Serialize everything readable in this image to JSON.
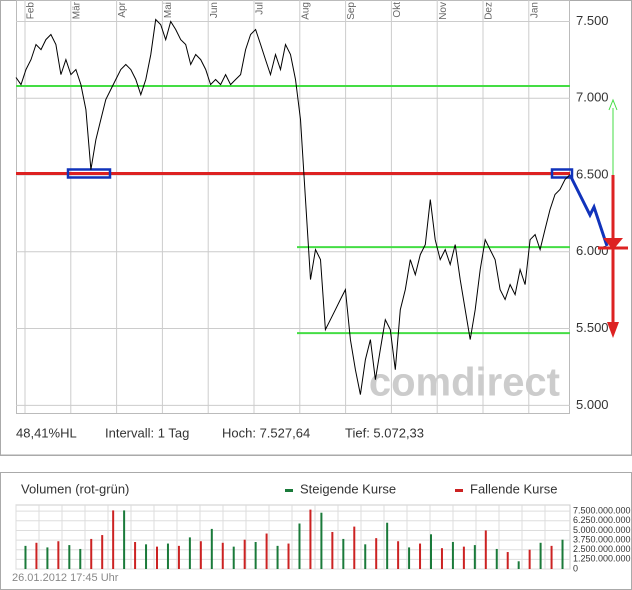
{
  "chart_data": [
    {
      "type": "line",
      "months": [
        "Feb",
        "Mär",
        "Apr",
        "Mai",
        "Jun",
        "Jul",
        "Aug",
        "Sep",
        "Okt",
        "Nov",
        "Dez",
        "Jan"
      ],
      "series": [
        {
          "color": "#000000",
          "values": [
            7135,
            7089,
            7187,
            7252,
            7350,
            7317,
            7382,
            7415,
            7350,
            7154,
            7252,
            7154,
            7187,
            7089,
            6926,
            6535,
            6731,
            6861,
            6992,
            7057,
            7122,
            7187,
            7220,
            7187,
            7122,
            7024,
            7122,
            7285,
            7513,
            7480,
            7382,
            7500,
            7448,
            7382,
            7350,
            7220,
            7285,
            7252,
            7187,
            7089,
            7122,
            7089,
            7154,
            7089,
            7122,
            7154,
            7317,
            7415,
            7448,
            7350,
            7252,
            7154,
            7285,
            7187,
            7350,
            7285,
            7122,
            6861,
            6340,
            5819,
            6014,
            5949,
            5493,
            5558,
            5623,
            5689,
            5754,
            5428,
            5232,
            5070,
            5298,
            5428,
            5167,
            5363,
            5558,
            5493,
            5232,
            5623,
            5754,
            5949,
            5851,
            5982,
            6047,
            6340,
            6079,
            5949,
            6014,
            5917,
            6047,
            5819,
            5623,
            5428,
            5623,
            5884,
            6079,
            6014,
            5949,
            5754,
            5689,
            5786,
            5721,
            5884,
            5786,
            6079,
            6112,
            6014,
            6145,
            6275,
            6373,
            6406,
            6471,
            6503
          ]
        }
      ],
      "levels": [
        {
          "value": 7080,
          "color": "#44dd44"
        },
        {
          "value": 6510,
          "color": "#dd2222"
        },
        {
          "value": 6030,
          "color": "#44dd44"
        },
        {
          "value": 5470,
          "color": "#44dd44"
        }
      ],
      "ylim": [
        4950,
        7640
      ],
      "yticks": [
        {
          "value": 5000,
          "label": "5.000"
        },
        {
          "value": 5500,
          "label": "5.500"
        },
        {
          "value": 6000,
          "label": "6.000"
        },
        {
          "value": 6500,
          "label": "6.500"
        },
        {
          "value": 7000,
          "label": "7.000"
        },
        {
          "value": 7500,
          "label": "7.500"
        }
      ],
      "grid": true,
      "watermark": "comdirect",
      "info": [
        "48,41%HL",
        "Intervall: 1 Tag",
        "Hoch: 7.527,64",
        "Tief: 5.072,33"
      ]
    },
    {
      "type": "bar",
      "title": "Volumen (rot-grün)",
      "series": [
        {
          "name": "Steigende Kurse",
          "color": "#1a7a3a",
          "values": [
            3000000000,
            null,
            2800000000,
            null,
            3100000000,
            2600000000,
            null,
            null,
            null,
            7600000000,
            null,
            3200000000,
            null,
            3300000000,
            null,
            4100000000,
            null,
            5200000000,
            null,
            2900000000,
            null,
            3500000000,
            null,
            3000000000,
            null,
            5900000000,
            null,
            7300000000,
            null,
            3900000000,
            null,
            3200000000,
            null,
            6000000000,
            null,
            2800000000,
            null,
            4500000000,
            null,
            3500000000,
            null,
            3100000000,
            null,
            2600000000,
            null,
            1000000000,
            null,
            3400000000,
            null,
            3800000000
          ]
        },
        {
          "name": "Fallende Kurse",
          "color": "#cc2222",
          "values": [
            null,
            3400000000,
            null,
            3600000000,
            null,
            null,
            3900000000,
            4400000000,
            7600000000,
            null,
            3500000000,
            null,
            2900000000,
            null,
            3000000000,
            null,
            3600000000,
            null,
            3400000000,
            null,
            3800000000,
            null,
            4600000000,
            null,
            3300000000,
            null,
            7700000000,
            null,
            4800000000,
            null,
            5500000000,
            null,
            4000000000,
            null,
            3600000000,
            null,
            3300000000,
            null,
            2700000000,
            null,
            2900000000,
            null,
            5000000000,
            null,
            2200000000,
            null,
            2500000000,
            null,
            3000000000,
            null
          ]
        }
      ],
      "ylim": [
        0,
        8300000000
      ],
      "yticks": [
        0,
        {
          "value": 1250000000,
          "label": "1.250.000.000"
        },
        {
          "value": 2500000000,
          "label": "2.500.000.000"
        },
        {
          "value": 3750000000,
          "label": "3.750.000.000"
        },
        {
          "value": 5000000000,
          "label": "5.000.000.000"
        },
        {
          "value": 6250000000,
          "label": "6.250.000.000"
        },
        {
          "value": 7500000000,
          "label": "7.500.000.000"
        }
      ],
      "grid": true,
      "timestamp": "26.01.2012 17:45 Uhr"
    }
  ]
}
